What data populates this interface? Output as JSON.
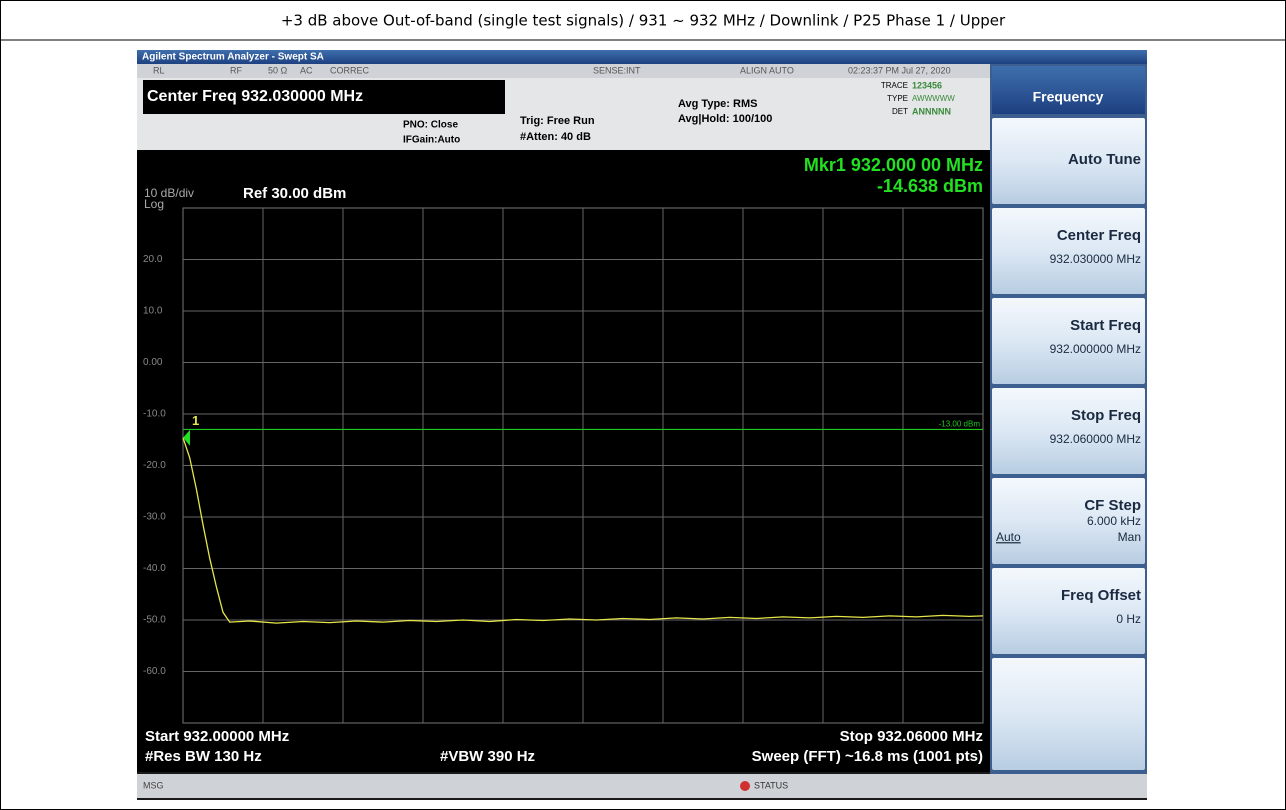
{
  "header": {
    "title": "+3 dB above Out-of-band (single test signals) / 931 ~ 932 MHz / Downlink / P25 Phase 1 / Upper"
  },
  "window": {
    "title": "Agilent Spectrum Analyzer - Swept SA"
  },
  "status_row": [
    "RL",
    "RF",
    "50 Ω",
    "AC",
    "CORREC",
    "SENSE:INT",
    "ALIGN AUTO",
    "02:23:37 PM Jul 27, 2020"
  ],
  "settings": {
    "center_freq": "Center Freq 932.030000 MHz",
    "pno": "PNO: Close",
    "ifgain": "IFGain:Auto",
    "trig": "Trig: Free Run",
    "atten": "#Atten: 40 dB",
    "avg_type": "Avg Type: RMS",
    "avg_hold": "Avg|Hold: 100/100"
  },
  "trace_info": {
    "trace_label": "TRACE",
    "trace": "123456",
    "type_label": "TYPE",
    "type": "AWWWWW",
    "det_label": "DET",
    "det": "ANNNNN"
  },
  "marker": {
    "freq": "Mkr1 932.000 00 MHz",
    "level": "-14.638 dBm",
    "label": "1"
  },
  "scale": {
    "per_div": "10 dB/div",
    "type": "Log",
    "ref": "Ref 30.00 dBm"
  },
  "plot": {
    "xlim": [
      932.0,
      932.06
    ],
    "ylim": [
      -70,
      30
    ],
    "yticks": [
      {
        "value": 20,
        "label": "20.0"
      },
      {
        "value": 10,
        "label": "10.0"
      },
      {
        "value": 0,
        "label": "0.00"
      },
      {
        "value": -10,
        "label": "-10.0"
      },
      {
        "value": -20,
        "label": "-20.0"
      },
      {
        "value": -30,
        "label": "-30.0"
      },
      {
        "value": -40,
        "label": "-40.0"
      },
      {
        "value": -50,
        "label": "-50.0"
      },
      {
        "value": -60,
        "label": "-60.0"
      }
    ],
    "grid": true,
    "display_line": {
      "value": -13,
      "label": "-13.00 dBm",
      "color": "#1ec81e"
    },
    "trace": {
      "color": "#e6e64a",
      "x": [
        932.0,
        932.0005,
        932.001,
        932.0015,
        932.002,
        932.0025,
        932.003,
        932.0035,
        932.005,
        932.007,
        932.009,
        932.011,
        932.013,
        932.015,
        932.017,
        932.019,
        932.021,
        932.023,
        932.025,
        932.027,
        932.029,
        932.031,
        932.033,
        932.035,
        932.037,
        932.039,
        932.041,
        932.043,
        932.045,
        932.047,
        932.049,
        932.051,
        932.053,
        932.055,
        932.057,
        932.059,
        932.06
      ],
      "y": [
        -14.6,
        -18.5,
        -24.5,
        -31.5,
        -38,
        -43.5,
        -48.5,
        -50.4,
        -50.2,
        -50.6,
        -50.3,
        -50.5,
        -50.2,
        -50.4,
        -50.1,
        -50.3,
        -50.0,
        -50.3,
        -49.9,
        -50.1,
        -49.8,
        -50.0,
        -49.7,
        -49.9,
        -49.6,
        -49.8,
        -49.5,
        -49.7,
        -49.4,
        -49.6,
        -49.3,
        -49.5,
        -49.2,
        -49.4,
        -49.1,
        -49.3,
        -49.2
      ]
    }
  },
  "footer": {
    "start": "Start 932.00000 MHz",
    "stop": "Stop 932.06000 MHz",
    "rbw": "#Res BW 130 Hz",
    "vbw": "#VBW 390 Hz",
    "sweep": "Sweep (FFT) ~16.8 ms (1001 pts)"
  },
  "softkeys": {
    "title": "Frequency",
    "keys": [
      {
        "label": "Auto Tune"
      },
      {
        "label": "Center Freq",
        "value": "932.030000 MHz"
      },
      {
        "label": "Start Freq",
        "value": "932.000000 MHz"
      },
      {
        "label": "Stop Freq",
        "value": "932.060000 MHz"
      },
      {
        "label": "CF Step",
        "value": "6.000 kHz",
        "options": [
          "Auto",
          "Man"
        ]
      },
      {
        "label": "Freq Offset",
        "value": "0 Hz"
      }
    ]
  },
  "status_bar": {
    "msg": "MSG",
    "status": "STATUS"
  }
}
